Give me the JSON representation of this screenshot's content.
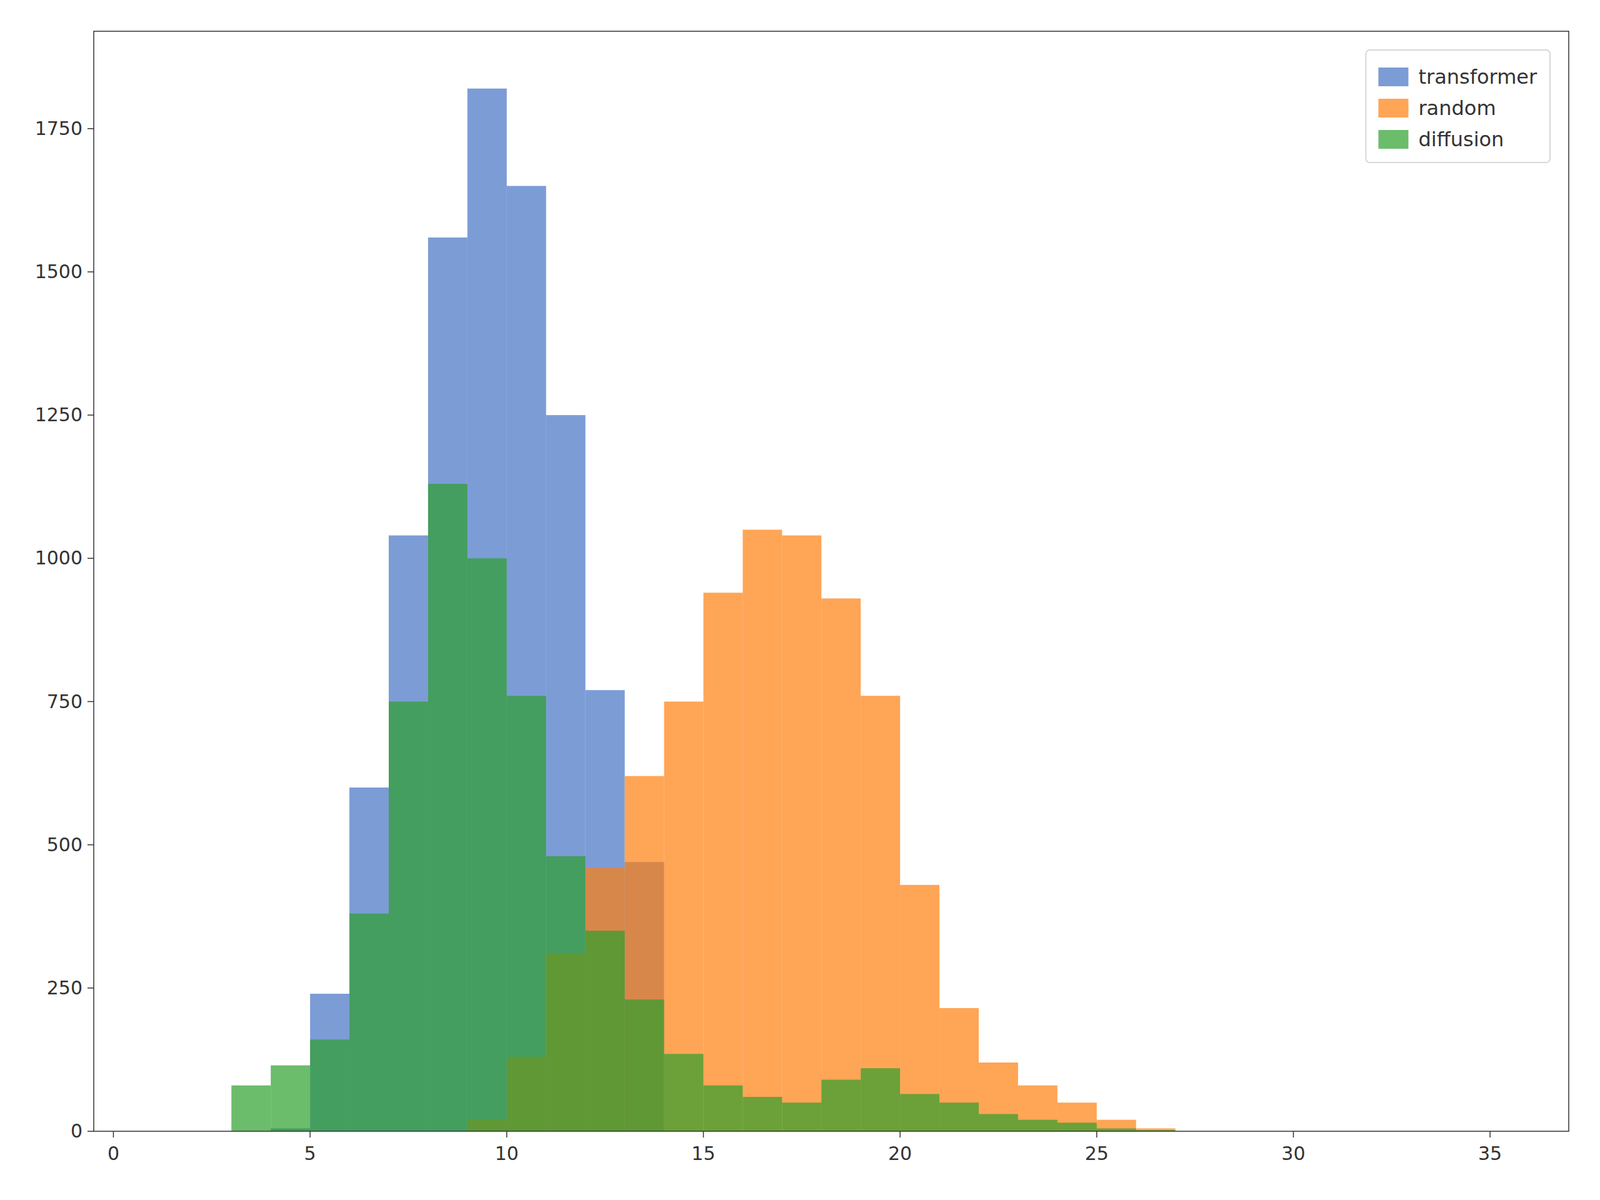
{
  "chart_data": {
    "type": "histogram",
    "bins": [
      0,
      1,
      2,
      3,
      4,
      5,
      6,
      7,
      8,
      9,
      10,
      11,
      12,
      13,
      14,
      15,
      16,
      17,
      18,
      19,
      20,
      21,
      22,
      23,
      24,
      25,
      26,
      27,
      28,
      29,
      30,
      31,
      32,
      33,
      34,
      35,
      36
    ],
    "series": [
      {
        "name": "transformer",
        "color": "#4472C4",
        "values": [
          0,
          0,
          0,
          0,
          5,
          240,
          600,
          1040,
          1560,
          1820,
          1650,
          1250,
          770,
          470,
          0,
          0,
          0,
          0,
          0,
          0,
          0,
          0,
          0,
          0,
          0,
          0,
          0,
          0,
          0,
          0,
          0,
          0,
          0,
          0,
          0,
          0
        ]
      },
      {
        "name": "random",
        "color": "#FF7F0E",
        "values": [
          0,
          0,
          0,
          0,
          0,
          0,
          0,
          0,
          0,
          20,
          130,
          310,
          460,
          620,
          750,
          940,
          1050,
          1040,
          930,
          760,
          430,
          215,
          120,
          80,
          50,
          20,
          5,
          0,
          0,
          0,
          0,
          0,
          0,
          0,
          0,
          0
        ]
      },
      {
        "name": "diffusion",
        "color": "#2CA02C",
        "values": [
          0,
          0,
          0,
          80,
          115,
          160,
          380,
          750,
          1130,
          1000,
          760,
          480,
          350,
          230,
          135,
          80,
          60,
          50,
          90,
          110,
          65,
          50,
          30,
          20,
          15,
          5,
          2,
          0,
          0,
          0,
          0,
          0,
          0,
          0,
          0,
          0
        ]
      }
    ],
    "xlim": [
      -0.5,
      37
    ],
    "ylim": [
      0,
      1920
    ],
    "xticks": [
      0,
      5,
      10,
      15,
      20,
      25,
      30,
      35
    ],
    "yticks": [
      0,
      250,
      500,
      750,
      1000,
      1250,
      1500,
      1750
    ],
    "grid": false,
    "legend": "upper right"
  }
}
